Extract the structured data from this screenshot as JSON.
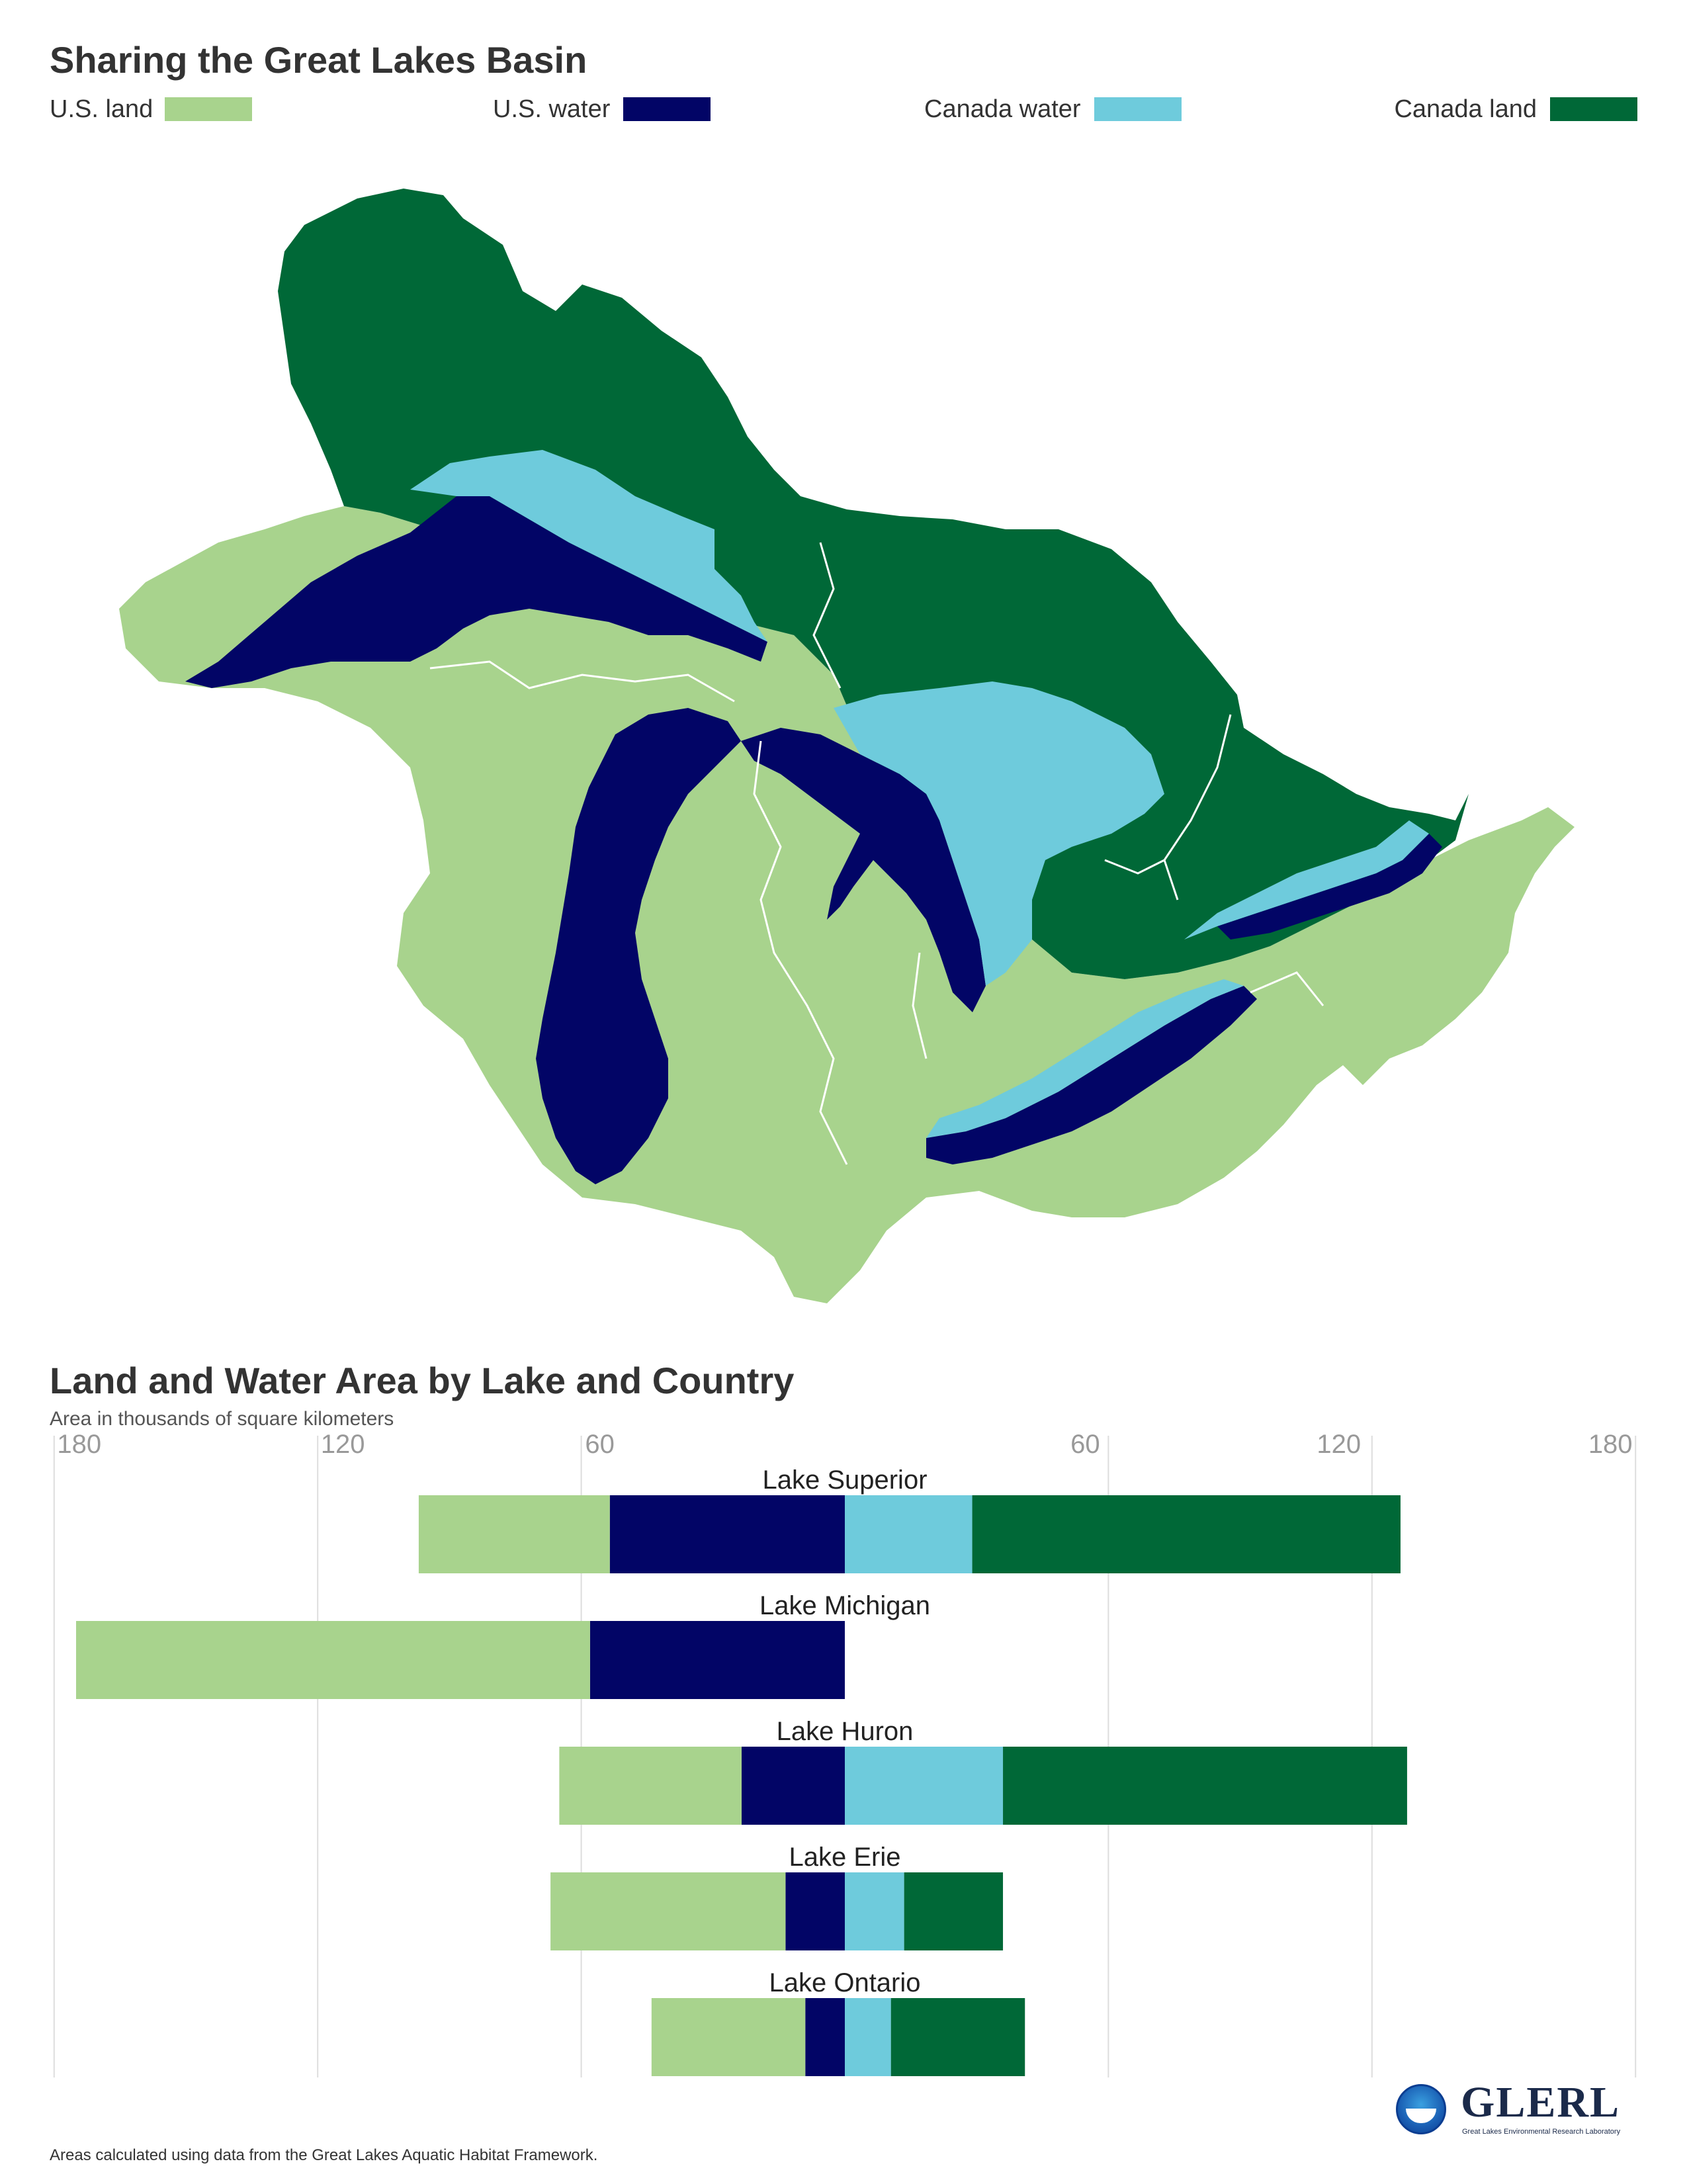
{
  "map_section": {
    "title": "Sharing the Great Lakes Basin",
    "legend": [
      {
        "label": "U.S. land",
        "color": "#a8d38d"
      },
      {
        "label": "U.S. water",
        "color": "#020566"
      },
      {
        "label": "Canada water",
        "color": "#6ecbdc"
      },
      {
        "label": "Canada land",
        "color": "#006837"
      }
    ]
  },
  "chart_section": {
    "title": "Land and Water Area by Lake and Country",
    "subtitle": "Area in thousands of square kilometers"
  },
  "chart_data": {
    "type": "bar",
    "orientation": "horizontal-diverging",
    "title": "Land and Water Area by Lake and Country",
    "subtitle": "Area in thousands of square kilometers",
    "xlim_left": [
      180,
      0
    ],
    "xlim_right": [
      0,
      180
    ],
    "tick_labels_left": [
      "180",
      "120",
      "60"
    ],
    "tick_labels_right": [
      "60",
      "120",
      "180"
    ],
    "tick_values": [
      180,
      120,
      60
    ],
    "grid": true,
    "categories": [
      "Lake Superior",
      "Lake Michigan",
      "Lake Huron",
      "Lake Erie",
      "Lake Ontario"
    ],
    "series": [
      {
        "name": "U.S. land",
        "side": "left",
        "color": "#a8d38d",
        "values": [
          43.5,
          117.0,
          41.5,
          53.5,
          35.0
        ]
      },
      {
        "name": "U.S. water",
        "side": "left",
        "color": "#020566",
        "values": [
          53.5,
          58.0,
          23.5,
          13.5,
          9.0
        ]
      },
      {
        "name": "Canada water",
        "side": "right",
        "color": "#6ecbdc",
        "values": [
          29.0,
          0,
          36.0,
          13.5,
          10.5
        ]
      },
      {
        "name": "Canada land",
        "side": "right",
        "color": "#006837",
        "values": [
          97.5,
          0,
          92.0,
          22.5,
          30.5
        ]
      }
    ]
  },
  "footnote": "Areas calculated using data from the Great Lakes Aquatic Habitat Framework.",
  "logos": {
    "glerl_text": "GLERL",
    "glerl_subtext": "Great Lakes Environmental Research Laboratory",
    "noaa_icon": "noaa-icon"
  }
}
